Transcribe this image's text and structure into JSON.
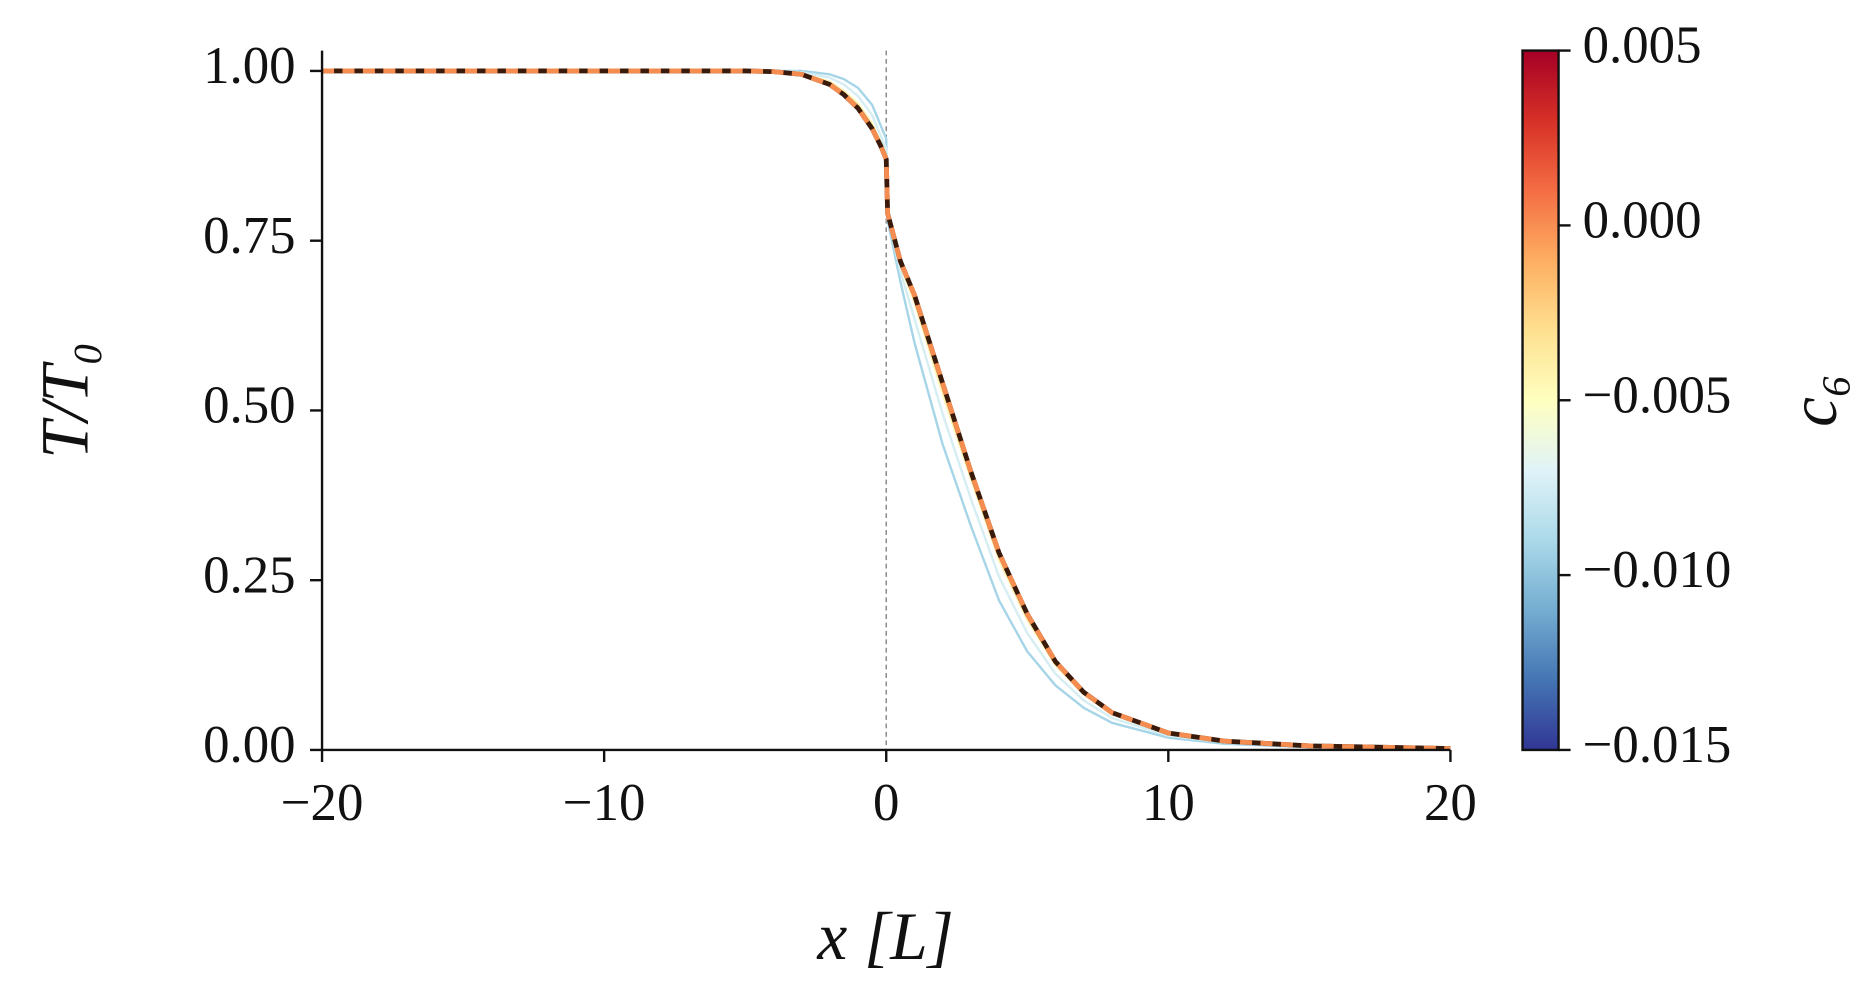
{
  "chart_data": {
    "type": "line",
    "xlabel": "x [L]",
    "ylabel": "T/T₀",
    "x": [
      -20,
      -10,
      -5,
      -4,
      -3,
      -2,
      -1.5,
      -1,
      -0.5,
      -0.2,
      0,
      0.05,
      0.5,
      1,
      2,
      3,
      4,
      5,
      6,
      7,
      8,
      10,
      12,
      15,
      20
    ],
    "series": [
      {
        "color": "#a6d5e8",
        "values": [
          1,
          1,
          1,
          1,
          1,
          0.995,
          0.988,
          0.975,
          0.95,
          0.92,
          0.9,
          0.78,
          0.69,
          0.6,
          0.45,
          0.33,
          0.22,
          0.145,
          0.095,
          0.062,
          0.04,
          0.018,
          0.009,
          0.004,
          0.001
        ]
      },
      {
        "color": "#d5eef2",
        "values": [
          1,
          1,
          1,
          1,
          0.998,
          0.99,
          0.98,
          0.963,
          0.935,
          0.905,
          0.885,
          0.785,
          0.705,
          0.635,
          0.495,
          0.37,
          0.255,
          0.172,
          0.112,
          0.073,
          0.047,
          0.021,
          0.011,
          0.005,
          0.0015
        ]
      },
      {
        "color": "#fdf3b0",
        "values": [
          1,
          1,
          1,
          1,
          0.996,
          0.984,
          0.97,
          0.952,
          0.922,
          0.895,
          0.875,
          0.79,
          0.715,
          0.66,
          0.525,
          0.4,
          0.28,
          0.192,
          0.125,
          0.082,
          0.053,
          0.024,
          0.012,
          0.0055,
          0.0018
        ]
      },
      {
        "color": "#3a1a0a",
        "dashed": false,
        "values": [
          1,
          1,
          1,
          0.999,
          0.995,
          0.98,
          0.965,
          0.945,
          0.915,
          0.89,
          0.87,
          0.79,
          0.72,
          0.67,
          0.54,
          0.41,
          0.29,
          0.2,
          0.13,
          0.085,
          0.055,
          0.025,
          0.013,
          0.006,
          0.002
        ]
      },
      {
        "color": "#f58c50",
        "dashed": true,
        "values": [
          1,
          1,
          1,
          0.999,
          0.995,
          0.98,
          0.965,
          0.945,
          0.915,
          0.89,
          0.87,
          0.79,
          0.72,
          0.67,
          0.54,
          0.41,
          0.29,
          0.2,
          0.13,
          0.085,
          0.055,
          0.025,
          0.013,
          0.006,
          0.002
        ]
      }
    ],
    "xlim": [
      -20,
      20
    ],
    "xticks": [
      {
        "value": -20,
        "label": "−20"
      },
      {
        "value": -10,
        "label": "−10"
      },
      0,
      10,
      20
    ],
    "ylim": [
      0,
      1.03
    ],
    "yticks": [
      {
        "value": 0,
        "label": "0.00"
      },
      0.25,
      {
        "value": 0.5,
        "label": "0.50"
      },
      0.75,
      {
        "value": 1,
        "label": "1.00"
      }
    ],
    "vline_x": 0,
    "colorbar": {
      "label": "c₆",
      "clim": [
        -0.015,
        0.005
      ],
      "ticks": [
        {
          "value": -0.015,
          "label": "−0.015"
        },
        {
          "value": -0.01,
          "label": "−0.010"
        },
        {
          "value": -0.005,
          "label": "−0.005"
        },
        {
          "value": 0,
          "label": "0.000"
        },
        0.005
      ],
      "colormap": [
        "#313695",
        "#4575b4",
        "#74add1",
        "#abd9e9",
        "#e0f3f8",
        "#ffffbf",
        "#fee090",
        "#fdae61",
        "#f46d43",
        "#d73027",
        "#a50026"
      ]
    }
  }
}
